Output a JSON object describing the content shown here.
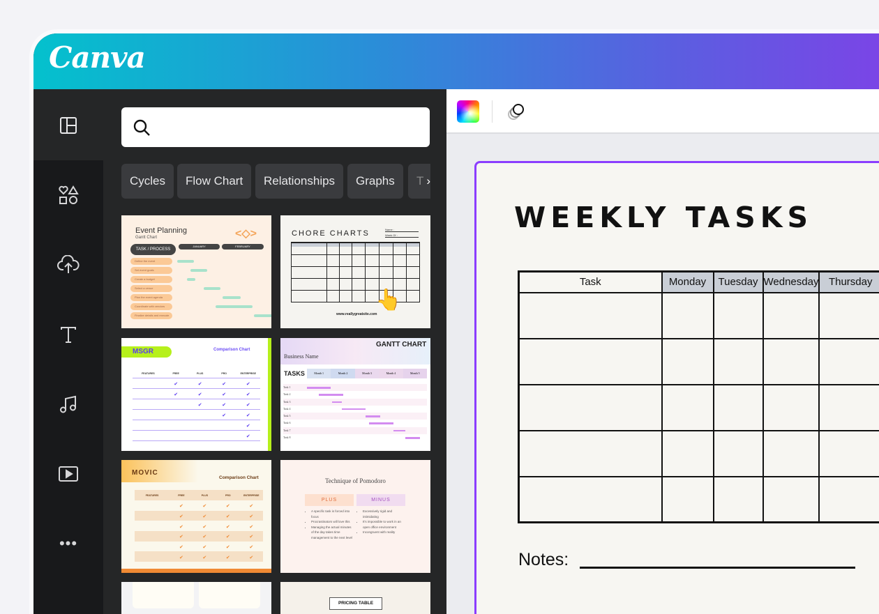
{
  "app": {
    "logo": "Canva"
  },
  "rail": {
    "items": [
      {
        "icon": "layout-icon",
        "label": "Design"
      },
      {
        "icon": "elements-icon",
        "label": "Elements"
      },
      {
        "icon": "upload-icon",
        "label": "Uploads"
      },
      {
        "icon": "text-icon",
        "label": "Text"
      },
      {
        "icon": "music-icon",
        "label": "Audio"
      },
      {
        "icon": "video-icon",
        "label": "Videos"
      },
      {
        "icon": "more-icon",
        "label": "More"
      }
    ]
  },
  "panel": {
    "search": {
      "placeholder": "",
      "value": ""
    },
    "chips": [
      "Cycles",
      "Flow Chart",
      "Relationships",
      "Graphs",
      "T"
    ],
    "templates": [
      {
        "title": "Event Planning",
        "subtitle": "Gantt Chart",
        "header": "TASK / PROCESS",
        "months": [
          "JANUARY",
          "FEBRUARY"
        ],
        "tasks": [
          "Define the event",
          "Set event goals",
          "Create a budget",
          "Select a venue",
          "Plan the event agenda",
          "Coordinate with vendors",
          "Finalize details and execute"
        ]
      },
      {
        "title": "CHORE CHARTS",
        "name_label": "Name :",
        "week_label": "Week Of :",
        "url": "www.reallygreatsite.com"
      },
      {
        "title": "MSGR",
        "subtitle": "Comparison Chart",
        "columns": [
          "FEATURES",
          "FREE",
          "PLUS",
          "PRO",
          "ENTERPRISE"
        ]
      },
      {
        "title": "GANTT CHART",
        "subtitle": "Business Name",
        "header": "TASKS",
        "months": [
          "Month 1",
          "Month 2",
          "Month 3",
          "Month 4",
          "Month 5"
        ],
        "tasks": [
          "Task 1",
          "Task 2",
          "Task 3",
          "Task 4",
          "Task 5",
          "Task 6",
          "Task 7",
          "Task 8"
        ]
      },
      {
        "title": "MOVIC",
        "subtitle": "Comparison Chart",
        "columns": [
          "FEATURES",
          "FREE",
          "PLUS",
          "PRO",
          "ENTERPRISE"
        ]
      },
      {
        "title": "Technique of Pomodoro",
        "plus": "PLUS",
        "minus": "MINUS",
        "plus_items": [
          "A specific task is forced into focus",
          "Procrastinators will love this",
          "Managing the actual minutes of the day takes time management to the next level"
        ],
        "minus_items": [
          "Excessively rigid and intimidating",
          "It's impossible to work in an open office environment",
          "Incongruent with reality"
        ]
      },
      {
        "title": ""
      },
      {
        "title": "PRICING TABLE"
      }
    ]
  },
  "toolbar": {
    "color_icon": "color-picker-icon",
    "transparency_icon": "transparency-icon"
  },
  "document": {
    "title": "WEEKLY TASKS",
    "columns": [
      "Task",
      "Monday",
      "Tuesday",
      "Wednesday",
      "Thursday"
    ],
    "notes_label": "Notes:"
  },
  "colors": {
    "accent": "#8b3dff",
    "header_start": "#04c1cd",
    "header_end": "#7a45e6"
  }
}
